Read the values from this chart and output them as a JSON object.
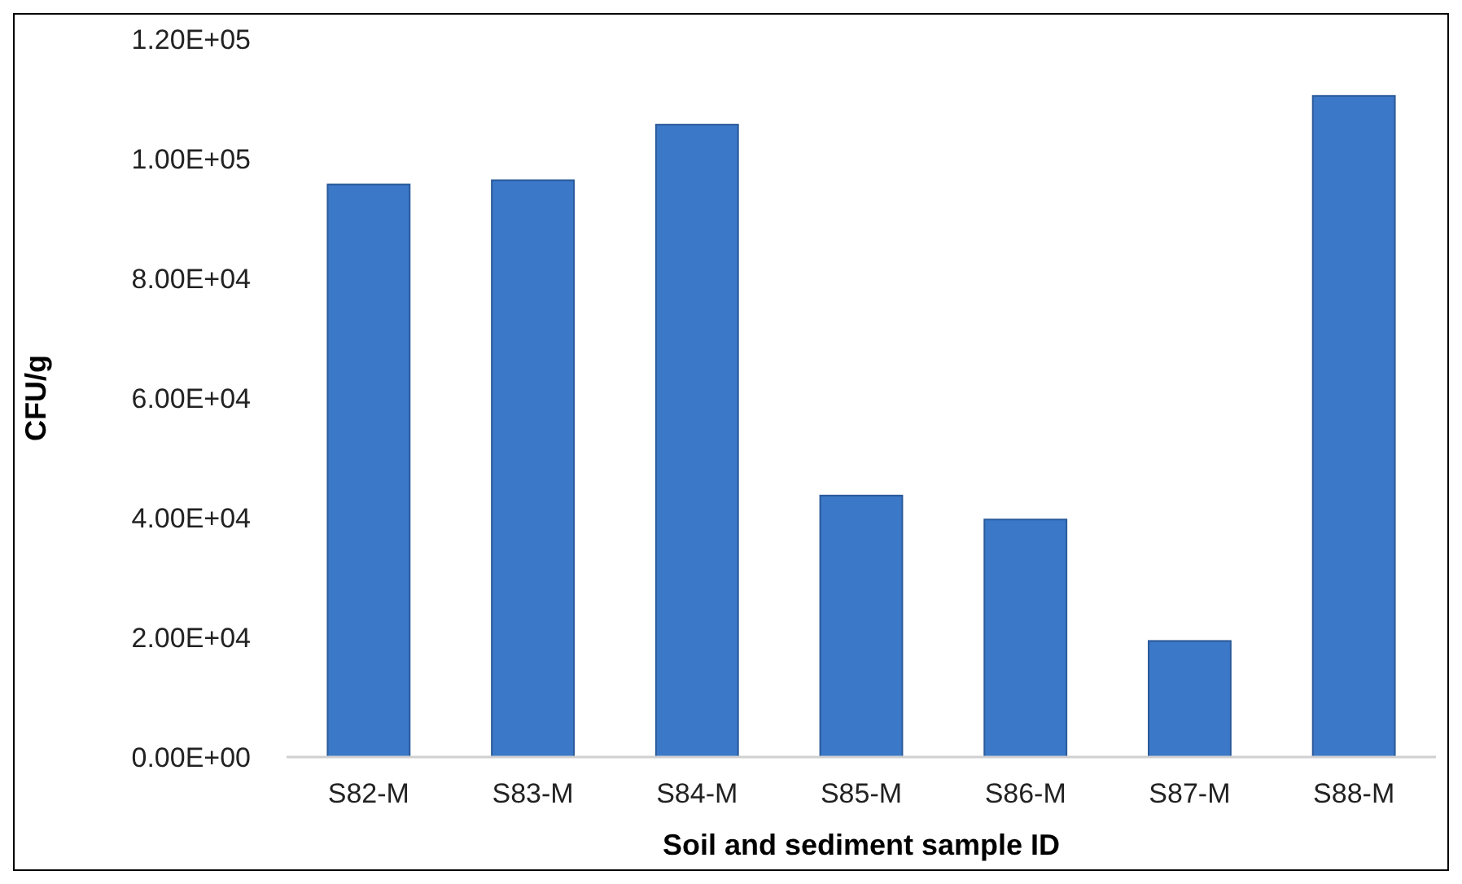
{
  "chart_data": {
    "type": "bar",
    "xlabel": "Soil and sediment sample ID",
    "ylabel": "CFU/g",
    "categories": [
      "S82-M",
      "S83-M",
      "S84-M",
      "S85-M",
      "S86-M",
      "S87-M",
      "S88-M"
    ],
    "values": [
      95700,
      96400,
      105700,
      43700,
      39700,
      19400,
      110500
    ],
    "color": "#3c78c8",
    "ylim": [
      0,
      120000
    ],
    "yticks": [
      {
        "value": 0,
        "label": "0.00E+00"
      },
      {
        "value": 20000,
        "label": "2.00E+04"
      },
      {
        "value": 40000,
        "label": "4.00E+04"
      },
      {
        "value": 60000,
        "label": "6.00E+04"
      },
      {
        "value": 80000,
        "label": "8.00E+04"
      },
      {
        "value": 100000,
        "label": "1.00E+05"
      },
      {
        "value": 120000,
        "label": "1.20E+05"
      }
    ],
    "grid": false
  }
}
